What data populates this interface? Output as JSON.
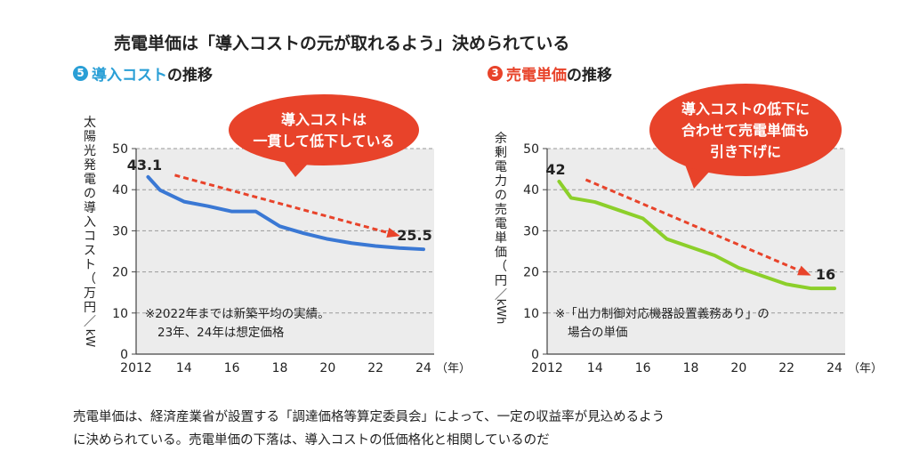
{
  "header": {
    "title": "売電単価は「導入コストの元が取れるよう」決められている"
  },
  "colors": {
    "accent_blue": "#2a9fd6",
    "accent_red": "#e8432a",
    "left_line": "#3a78d4",
    "right_line": "#8ccf2a",
    "plot_bg": "#ececec",
    "grid": "#999999",
    "arrow": "#e8432a"
  },
  "chart_data": [
    {
      "type": "line",
      "badge": "5",
      "title_highlight": "導入コスト",
      "title_suffix": "の推移",
      "ylabel": "太陽光発電の導入コスト（万円／kW）",
      "ylabel_chars": [
        "太",
        "陽",
        "光",
        "発",
        "電",
        "の",
        "導",
        "入",
        "コ",
        "ス",
        "ト",
        "（",
        "万",
        "円",
        "／"
      ],
      "ylabel_unit": "kW",
      "xlabel": "（年）",
      "x_ticks": [
        "2012",
        "14",
        "16",
        "18",
        "20",
        "22",
        "24"
      ],
      "y_ticks": [
        "0",
        "10",
        "20",
        "30",
        "40",
        "50"
      ],
      "xlim": [
        2012,
        2024
      ],
      "ylim": [
        0,
        50
      ],
      "series": [
        {
          "x": [
            2012.5,
            2013,
            2014,
            2015,
            2016,
            2017,
            2018,
            2019,
            2020,
            2021,
            2022,
            2023,
            2024
          ],
          "y": [
            43.1,
            39.9,
            37.1,
            36.0,
            34.7,
            34.7,
            31.1,
            29.4,
            28.0,
            27.0,
            26.3,
            25.8,
            25.5
          ]
        }
      ],
      "data_labels": [
        {
          "x": 2012.5,
          "y": 43.1,
          "text": "43.1"
        },
        {
          "x": 2024,
          "y": 25.5,
          "text": "25.5"
        }
      ],
      "bubble": [
        "導入コストは",
        "一貫して低下している"
      ],
      "note": [
        "※2022年までは新築平均の実績。",
        "23年、24年は想定価格"
      ]
    },
    {
      "type": "line",
      "badge": "3",
      "title_highlight": "売電単価",
      "title_suffix": "の推移",
      "ylabel": "余剰電力の売電単価（円／kWh）",
      "ylabel_chars": [
        "余",
        "剰",
        "電",
        "力",
        "の",
        "売",
        "電",
        "単",
        "価",
        "（",
        "円",
        "／"
      ],
      "ylabel_unit": "kWh",
      "xlabel": "（年）",
      "x_ticks": [
        "2012",
        "14",
        "16",
        "18",
        "20",
        "22",
        "24"
      ],
      "y_ticks": [
        "0",
        "10",
        "20",
        "30",
        "40",
        "50"
      ],
      "xlim": [
        2012,
        2024
      ],
      "ylim": [
        0,
        50
      ],
      "series": [
        {
          "x": [
            2012.5,
            2013,
            2014,
            2015,
            2016,
            2017,
            2018,
            2019,
            2020,
            2021,
            2022,
            2023,
            2024
          ],
          "y": [
            42,
            38,
            37,
            35,
            33,
            28,
            26,
            24,
            21,
            19,
            17,
            16,
            16
          ]
        }
      ],
      "data_labels": [
        {
          "x": 2012.5,
          "y": 42,
          "text": "42"
        },
        {
          "x": 2024,
          "y": 16,
          "text": "16"
        }
      ],
      "bubble": [
        "導入コストの低下に",
        "合わせて売電単価も",
        "引き下げに"
      ],
      "note": [
        "※「出力制御対応機器設置義務あり」の",
        "場合の単価"
      ]
    }
  ],
  "caption": {
    "line1": "売電単価は、経済産業省が設置する「調達価格等算定委員会」によって、一定の収益率が見込めるよう",
    "line2": "に決められている。売電単価の下落は、導入コストの低価格化と相関しているのだ"
  }
}
